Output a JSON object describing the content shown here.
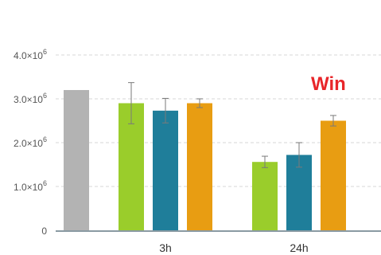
{
  "chart_data": {
    "type": "bar",
    "title": "",
    "xlabel": "",
    "ylabel": "",
    "ylim": [
      0,
      4000000
    ],
    "y_ticks": [
      {
        "value": 0,
        "base": "0",
        "exp": ""
      },
      {
        "value": 1000000,
        "base": "1.0×10",
        "exp": "6"
      },
      {
        "value": 2000000,
        "base": "2.0×10",
        "exp": "6"
      },
      {
        "value": 3000000,
        "base": "3.0×10",
        "exp": "6"
      },
      {
        "value": 4000000,
        "base": "4.0×10",
        "exp": "6"
      }
    ],
    "grid": true,
    "annotation": "Win",
    "baseline_bar": {
      "value": 3200000,
      "color": "#b3b3b3"
    },
    "categories": [
      "3h",
      "24h"
    ],
    "series": [
      {
        "color": "#9acd2b",
        "values": [
          2900000,
          1560000
        ],
        "errors": [
          470000,
          130000
        ]
      },
      {
        "color": "#1f7e9a",
        "values": [
          2730000,
          1720000
        ],
        "errors": [
          280000,
          280000
        ]
      },
      {
        "color": "#e89d12",
        "values": [
          2900000,
          2500000
        ],
        "errors": [
          100000,
          120000
        ]
      }
    ]
  }
}
